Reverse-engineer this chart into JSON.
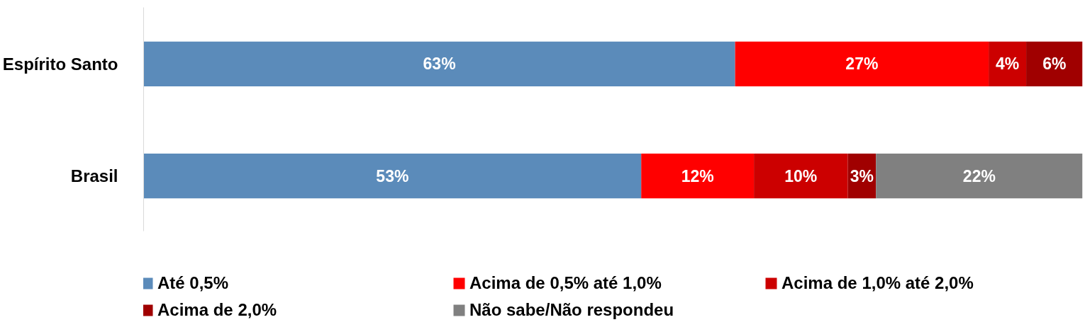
{
  "chart_data": {
    "type": "bar",
    "orientation": "horizontal",
    "stacked": true,
    "grid": false,
    "legend": "bottom",
    "tick_labels": "y",
    "categories": [
      "Espírito Santo",
      "Brasil"
    ],
    "series": [
      {
        "name": "Até 0,5%",
        "color": "#5b8bba",
        "values": [
          63,
          53
        ],
        "value_labels": [
          "63%",
          "53%"
        ]
      },
      {
        "name": "Acima de 0,5% até 1,0%",
        "color": "#ff0000",
        "values": [
          27,
          12
        ],
        "value_labels": [
          "27%",
          "12%"
        ]
      },
      {
        "name": "Acima de 1,0% até 2,0%",
        "color": "#cc0000",
        "values": [
          4,
          10
        ],
        "value_labels": [
          "4%",
          "10%"
        ]
      },
      {
        "name": "Acima de 2,0%",
        "color": "#a00000",
        "values": [
          6,
          3
        ],
        "value_labels": [
          "6%",
          "3%"
        ]
      },
      {
        "name": "Não sabe/Não respondeu",
        "color": "#808080",
        "values": [
          null,
          22
        ],
        "value_labels": [
          null,
          "22%"
        ]
      }
    ]
  }
}
